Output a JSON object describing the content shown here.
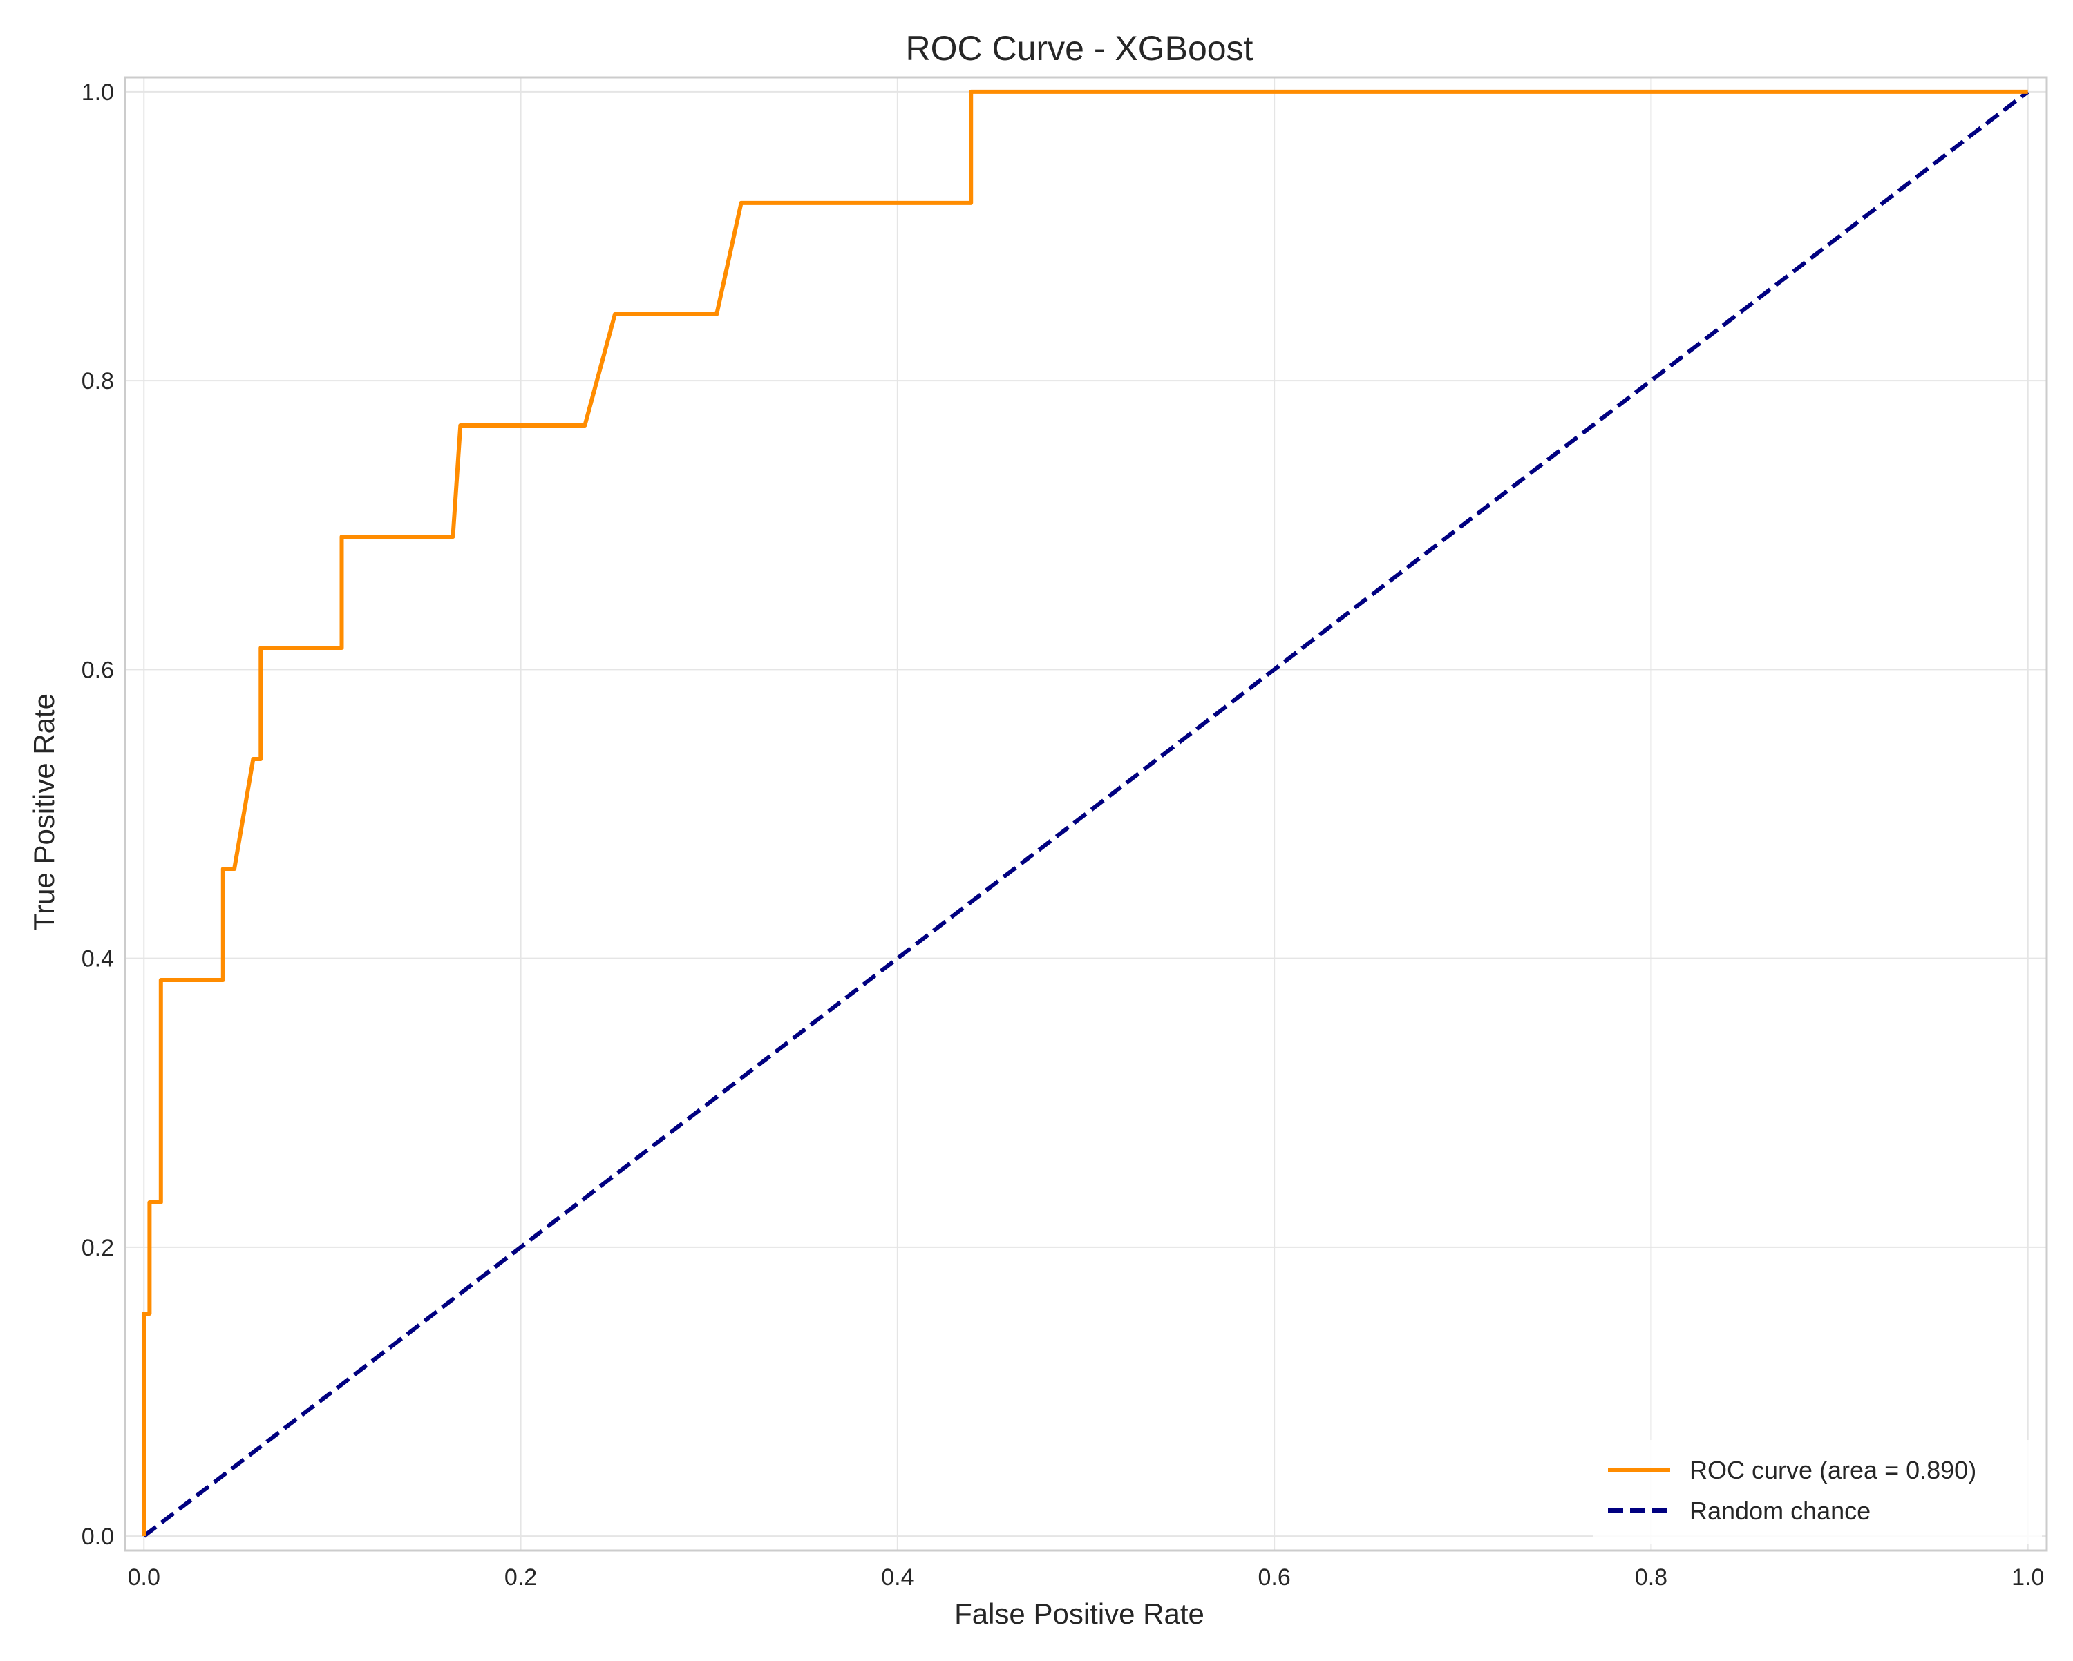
{
  "chart_data": {
    "type": "line",
    "title": "ROC Curve - XGBoost",
    "xlabel": "False Positive Rate",
    "ylabel": "True Positive Rate",
    "xlim": [
      -0.01,
      1.01
    ],
    "ylim": [
      -0.01,
      1.01
    ],
    "grid": true,
    "legend_position": "lower-right",
    "x_ticks": [
      "0.0",
      "0.2",
      "0.4",
      "0.6",
      "0.8",
      "1.0"
    ],
    "y_ticks": [
      "0.0",
      "0.2",
      "0.4",
      "0.6",
      "0.8",
      "1.0"
    ],
    "x_tick_values": [
      0.0,
      0.2,
      0.4,
      0.6,
      0.8,
      1.0
    ],
    "y_tick_values": [
      0.0,
      0.2,
      0.4,
      0.6,
      0.8,
      1.0
    ],
    "series": [
      {
        "name": "ROC curve (area = 0.890)",
        "color": "#ff8c00",
        "style": "solid",
        "x": [
          0.0,
          0.0,
          0.003,
          0.003,
          0.009,
          0.009,
          0.042,
          0.042,
          0.048,
          0.058,
          0.058,
          0.062,
          0.062,
          0.102,
          0.105,
          0.105,
          0.164,
          0.168,
          0.168,
          0.234,
          0.25,
          0.25,
          0.304,
          0.317,
          0.317,
          0.439,
          0.439,
          1.0
        ],
        "y": [
          0.0,
          0.154,
          0.154,
          0.231,
          0.231,
          0.385,
          0.385,
          0.462,
          0.462,
          0.538,
          0.538,
          0.538,
          0.615,
          0.615,
          0.615,
          0.692,
          0.692,
          0.769,
          0.769,
          0.769,
          0.846,
          0.846,
          0.846,
          0.923,
          0.923,
          0.923,
          1.0,
          1.0
        ]
      },
      {
        "name": "Random chance",
        "color": "#000080",
        "style": "dashed",
        "x": [
          0.0,
          1.0
        ],
        "y": [
          0.0,
          1.0
        ]
      }
    ]
  }
}
